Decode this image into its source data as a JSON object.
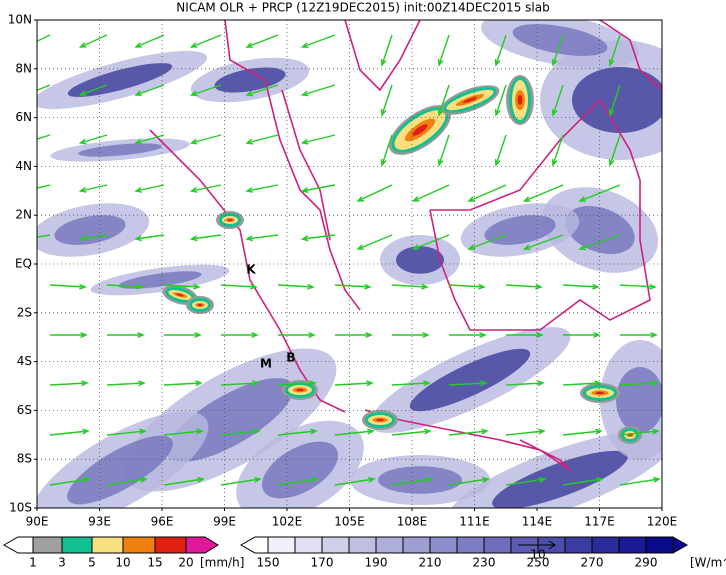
{
  "header": {
    "title": "NICAM OLR + PRCP (12Z19DEC2015) init:00Z14DEC2015 slab"
  },
  "map": {
    "lat_labels": [
      "10N",
      "8N",
      "6N",
      "4N",
      "2N",
      "EQ",
      "2S",
      "4S",
      "6S",
      "8S",
      "10S"
    ],
    "lon_labels": [
      "90E",
      "93E",
      "96E",
      "99E",
      "102E",
      "105E",
      "108E",
      "111E",
      "114E",
      "117E",
      "120E"
    ],
    "sites": [
      "K",
      "M",
      "B"
    ]
  },
  "legend": {
    "precip": {
      "labels": [
        "1",
        "3",
        "5",
        "10",
        "15",
        "20"
      ],
      "unit": "[mm/h]"
    },
    "olr": {
      "labels": [
        "150",
        "170",
        "190",
        "210",
        "230",
        "250",
        "270",
        "290"
      ],
      "unit": "[W/m^2]"
    },
    "vector_scale": "10"
  }
}
